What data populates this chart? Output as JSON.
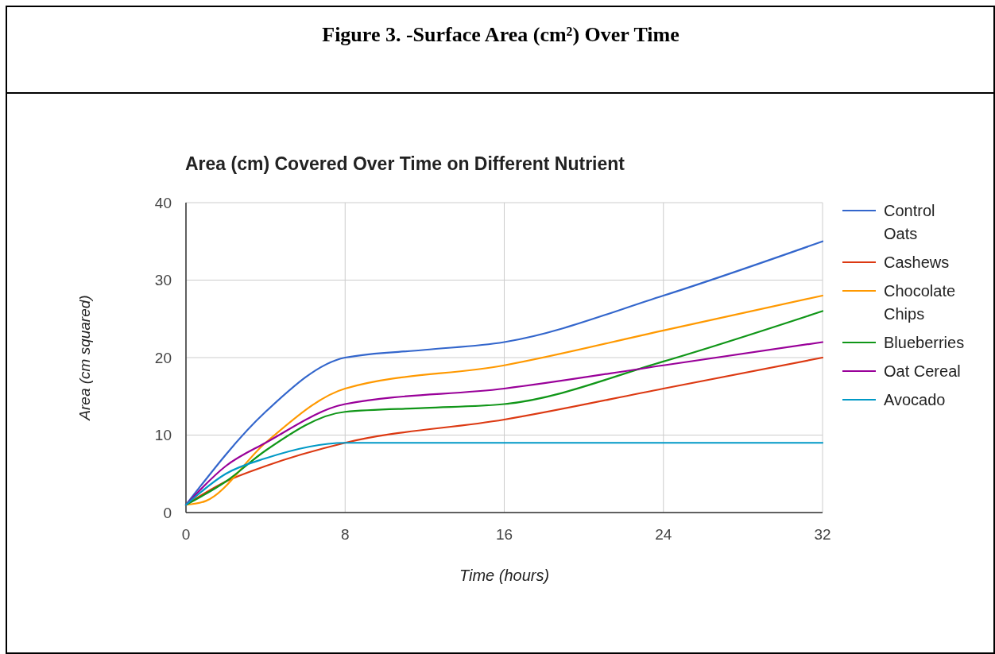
{
  "chart_data": {
    "type": "line",
    "title": "Figure 3. -Surface Area (cm²) Over Time",
    "subtitle": "Area (cm) Covered Over Time on Different Nutrient",
    "xlabel": "Time (hours)",
    "ylabel": "Area (cm squared)",
    "xlim": [
      0,
      32
    ],
    "xticks": [
      0,
      8,
      16,
      24,
      32
    ],
    "ylim": [
      0,
      40
    ],
    "yticks": [
      0,
      10,
      20,
      30,
      40
    ],
    "grid": true,
    "legend": "right",
    "series": [
      {
        "name": "Control Oats",
        "color": "#3366cc",
        "x": [
          0,
          4,
          8,
          12,
          16,
          24,
          32
        ],
        "values": [
          1,
          13,
          20,
          21,
          22,
          28,
          35
        ]
      },
      {
        "name": "Cashews",
        "color": "#dc3912",
        "x": [
          0,
          2,
          4,
          8,
          16,
          24,
          32
        ],
        "values": [
          1,
          4,
          6,
          9,
          12,
          16,
          20
        ]
      },
      {
        "name": "Chocolate Chips",
        "color": "#ff9900",
        "x": [
          0,
          1,
          4,
          8,
          16,
          24,
          32
        ],
        "values": [
          1,
          1.5,
          9,
          16,
          19,
          23.5,
          28
        ]
      },
      {
        "name": "Blueberries",
        "color": "#109618",
        "x": [
          0,
          2,
          4,
          8,
          12,
          16,
          24,
          32
        ],
        "values": [
          1,
          4,
          8,
          13,
          13.5,
          14,
          19.5,
          26
        ]
      },
      {
        "name": "Oat Cereal",
        "color": "#990099",
        "x": [
          0,
          2,
          4,
          8,
          16,
          24,
          32
        ],
        "values": [
          1,
          6,
          9,
          14,
          16,
          19,
          22
        ]
      },
      {
        "name": "Avocado",
        "color": "#0099c6",
        "x": [
          0,
          2,
          4,
          8,
          16,
          24,
          32
        ],
        "values": [
          1,
          5,
          7,
          9,
          9,
          9,
          9
        ]
      }
    ]
  }
}
